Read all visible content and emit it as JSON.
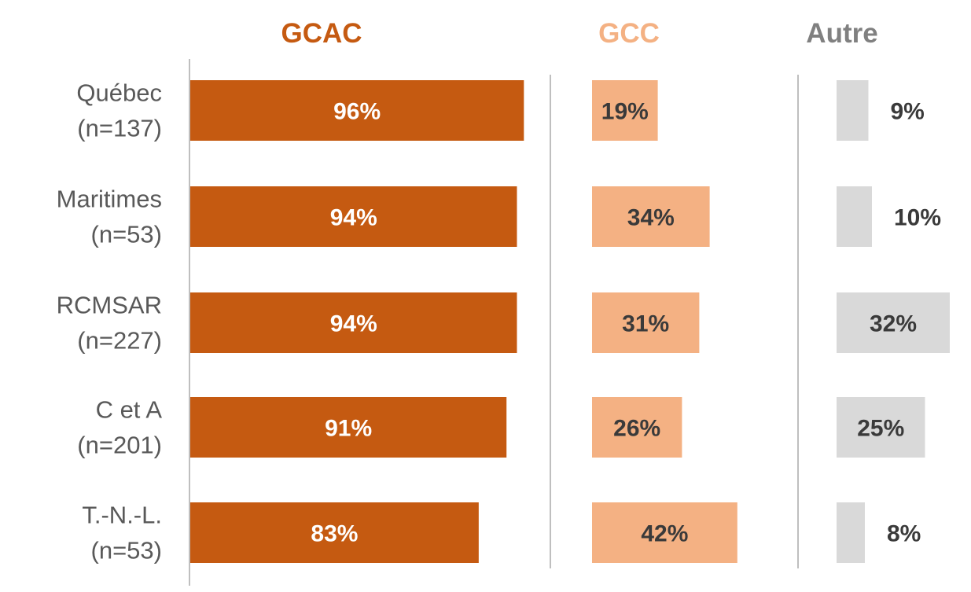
{
  "chart_data": {
    "type": "bar",
    "orientation": "horizontal",
    "layout": "small-multiples",
    "categories": [
      {
        "name": "Québec",
        "n": "(n=137)"
      },
      {
        "name": "Maritimes",
        "n": "(n=53)"
      },
      {
        "name": "RCMSAR",
        "n": "(n=227)"
      },
      {
        "name": "C et A",
        "n": "(n=201)"
      },
      {
        "name": "T.-N.-L.",
        "n": "(n=53)"
      }
    ],
    "series": [
      {
        "name": "GCAC",
        "values": [
          96,
          94,
          94,
          91,
          83
        ],
        "labels": [
          "96%",
          "94%",
          "94%",
          "91%",
          "83%"
        ],
        "color": "#c55a11",
        "header_color": "#c55a11",
        "label_color": "#ffffff",
        "label_position": "inside"
      },
      {
        "name": "GCC",
        "values": [
          19,
          34,
          31,
          26,
          42
        ],
        "labels": [
          "19%",
          "34%",
          "31%",
          "26%",
          "42%"
        ],
        "color": "#f4b183",
        "header_color": "#f4b183",
        "label_color": "#3a3a3a",
        "label_position": "inside"
      },
      {
        "name": "Autre",
        "values": [
          9,
          10,
          32,
          25,
          8
        ],
        "labels": [
          "9%",
          "10%",
          "32%",
          "25%",
          "8%"
        ],
        "color": "#d9d9d9",
        "header_color": "#808080",
        "label_color": "#3a3a3a",
        "label_position": "inside-or-right"
      }
    ],
    "xlim": [
      0,
      100
    ],
    "value_unit": "%",
    "grid": false,
    "legend": "none"
  }
}
